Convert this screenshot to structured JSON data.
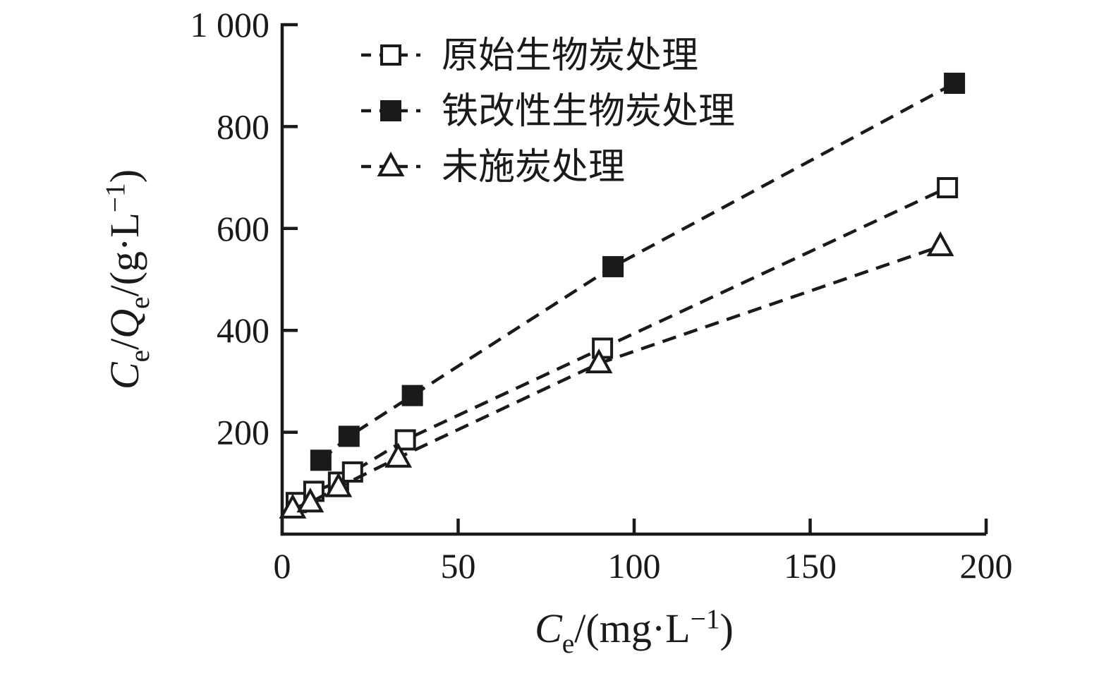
{
  "figure": {
    "background": "#ffffff",
    "ink": "#1a1a1a"
  },
  "chart_data": {
    "type": "scatter",
    "title": "",
    "xlabel": "Ce/(mg·L−1)",
    "ylabel": "Ce/Qe/(g·L−1)",
    "xlim": [
      0,
      200
    ],
    "ylim": [
      0,
      1000
    ],
    "x_ticks": [
      0,
      50,
      100,
      150,
      200
    ],
    "x_tick_labels": [
      "0",
      "50",
      "100",
      "150",
      "200"
    ],
    "y_ticks": [
      200,
      400,
      600,
      800,
      1000
    ],
    "y_tick_labels": [
      "200",
      "400",
      "600",
      "800",
      "1 000"
    ],
    "grid": false,
    "line_style": "dashed",
    "legend_position": "top-left-inside",
    "series": [
      {
        "name": "原始生物炭处理",
        "key": "original-biochar",
        "marker": "square-open",
        "points": [
          [
            4,
            62
          ],
          [
            9,
            84
          ],
          [
            16,
            102
          ],
          [
            20,
            122
          ],
          [
            35,
            185
          ],
          [
            91,
            365
          ],
          [
            189,
            680
          ]
        ]
      },
      {
        "name": "铁改性生物炭处理",
        "key": "iron-modified-biochar",
        "marker": "square-filled",
        "points": [
          [
            11,
            145
          ],
          [
            19,
            192
          ],
          [
            37,
            272
          ],
          [
            94,
            525
          ],
          [
            191,
            885
          ]
        ]
      },
      {
        "name": "未施炭处理",
        "key": "no-biochar",
        "marker": "triangle-open",
        "points": [
          [
            3,
            50
          ],
          [
            8,
            62
          ],
          [
            16,
            92
          ],
          [
            33,
            150
          ],
          [
            90,
            335
          ],
          [
            187,
            565
          ]
        ]
      }
    ],
    "x_axis_title_parts": [
      {
        "t": "C",
        "style": "italic"
      },
      {
        "t": "e",
        "style": "sub"
      },
      {
        "t": "/(mg·L",
        "style": "normal"
      },
      {
        "t": "−1",
        "style": "sup"
      },
      {
        "t": ")",
        "style": "normal"
      }
    ],
    "y_axis_title_parts": [
      {
        "t": "C",
        "style": "italic"
      },
      {
        "t": "e",
        "style": "sub"
      },
      {
        "t": "/",
        "style": "normal"
      },
      {
        "t": "Q",
        "style": "italic"
      },
      {
        "t": "e",
        "style": "sub"
      },
      {
        "t": "/(g·L",
        "style": "normal"
      },
      {
        "t": "−1",
        "style": "sup"
      },
      {
        "t": ")",
        "style": "normal"
      }
    ]
  }
}
